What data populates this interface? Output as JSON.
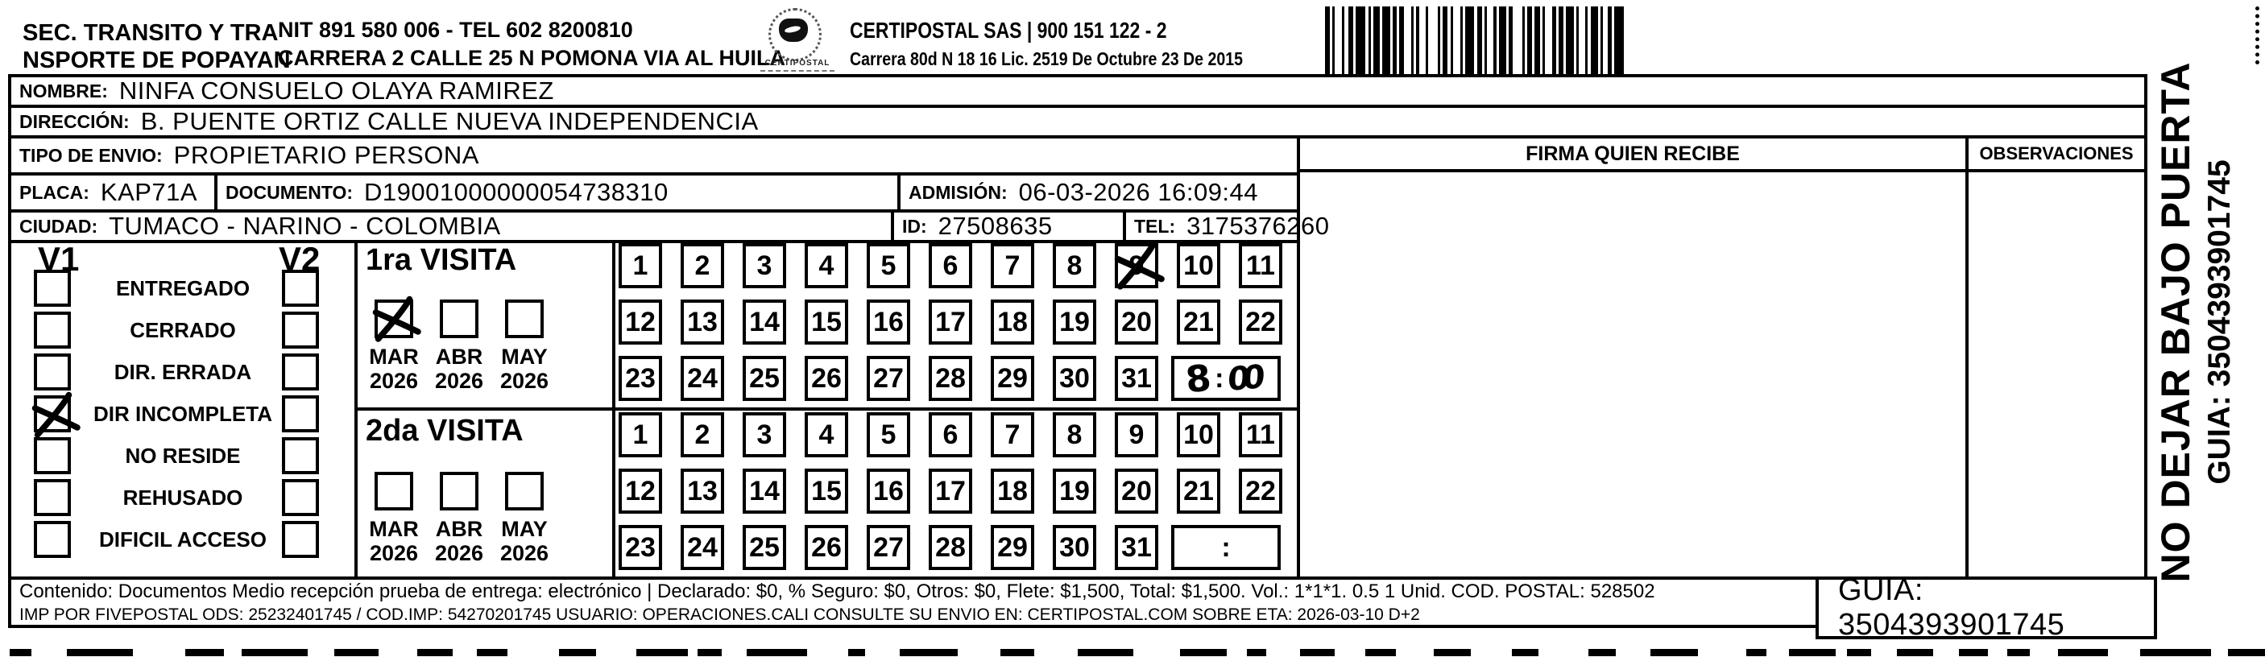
{
  "header": {
    "sender_line1": "SEC. TRANSITO Y TRA",
    "sender_line2": "NSPORTE DE POPAYAN",
    "nit_line": "NIT 891 580 006 - TEL 602 8200810",
    "address_line": "CARRERA 2 CALLE 25 N POMONA VIA AL HUILA",
    "logo_caption": "CERTIPOSTAL",
    "company_line": "CERTIPOSTAL SAS | 900 151 122 - 2",
    "company_address": "Carrera 80d N 18 16  Lic. 2519 De Octubre 23 De 2015"
  },
  "fields": {
    "nombre_label": "NOMBRE:",
    "nombre": "NINFA CONSUELO OLAYA RAMIREZ",
    "direccion_label": "DIRECCIÓN:",
    "direccion": "B. PUENTE ORTIZ CALLE NUEVA INDEPENDENCIA",
    "tipo_envio_label": "TIPO DE ENVIO:",
    "tipo_envio": "PROPIETARIO PERSONA",
    "placa_label": "PLACA:",
    "placa": "KAP71A",
    "documento_label": "DOCUMENTO:",
    "documento": "D19001000000054738310",
    "admision_label": "ADMISIÓN:",
    "admision": "06-03-2026 16:09:44",
    "ciudad_label": "CIUDAD:",
    "ciudad": "TUMACO - NARINO - COLOMBIA",
    "id_label": "ID:",
    "id_value": "27508635",
    "tel_label": "TEL:",
    "tel": "3175376260"
  },
  "signature": {
    "firma_header": "FIRMA QUIEN RECIBE",
    "observaciones_header": "OBSERVACIONES"
  },
  "visits": {
    "v1_label": "V1",
    "v2_label": "V2",
    "statuses": [
      {
        "label": "ENTREGADO",
        "v1": false,
        "v2": false
      },
      {
        "label": "CERRADO",
        "v1": false,
        "v2": false
      },
      {
        "label": "DIR. ERRADA",
        "v1": false,
        "v2": false
      },
      {
        "label": "DIR INCOMPLETA",
        "v1": true,
        "v2": false
      },
      {
        "label": "NO RESIDE",
        "v1": false,
        "v2": false
      },
      {
        "label": "REHUSADO",
        "v1": false,
        "v2": false
      },
      {
        "label": "DIFICIL ACCESO",
        "v1": false,
        "v2": false
      }
    ],
    "day_numbers": [
      1,
      2,
      3,
      4,
      5,
      6,
      7,
      8,
      9,
      10,
      11,
      12,
      13,
      14,
      15,
      16,
      17,
      18,
      19,
      20,
      21,
      22,
      23,
      24,
      25,
      26,
      27,
      28,
      29,
      30,
      31
    ],
    "first_visit": {
      "title": "1ra VISITA",
      "months": [
        {
          "label": "MAR",
          "year": "2026",
          "checked": true
        },
        {
          "label": "ABR",
          "year": "2026",
          "checked": false
        },
        {
          "label": "MAY",
          "year": "2026",
          "checked": false
        }
      ],
      "marked_day": 9,
      "time": {
        "hour": "8",
        "separator": ":",
        "minutes": "00"
      }
    },
    "second_visit": {
      "title": "2da VISITA",
      "months": [
        {
          "label": "MAR",
          "year": "2026",
          "checked": false
        },
        {
          "label": "ABR",
          "year": "2026",
          "checked": false
        },
        {
          "label": "MAY",
          "year": "2026",
          "checked": false
        }
      ],
      "marked_day": null,
      "time": {
        "hour": "",
        "separator": ":",
        "minutes": ""
      }
    }
  },
  "side_note": {
    "line1": "NO DEJAR BAJO PUERTA",
    "line2": "GUIA: 3504393901745"
  },
  "footer": {
    "line1": "Contenido: Documentos Medio recepción prueba de entrega: electrónico | Declarado: $0, % Seguro: $0, Otros: $0, Flete: $1,500, Total: $1,500. Vol.: 1*1*1. 0.5  1 Unid. COD. POSTAL: 528502",
    "line2": "IMP POR FIVEPOSTAL ODS: 25232401745 / COD.IMP: 54270201745 USUARIO: OPERACIONES.CALI CONSULTE SU ENVIO EN: CERTIPOSTAL.COM SOBRE ETA: 2026-03-10 D+2",
    "guia": "GUIA: 3504393901745"
  }
}
